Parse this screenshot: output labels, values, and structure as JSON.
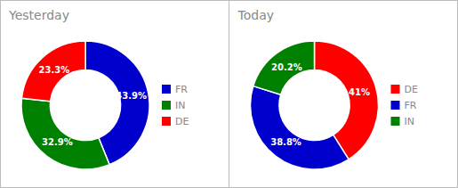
{
  "chart_data": [
    {
      "type": "donut",
      "title": "Yesterday",
      "categories": [
        "FR",
        "IN",
        "DE"
      ],
      "values": [
        43.9,
        32.9,
        23.3
      ],
      "value_labels": [
        "43.9%",
        "32.9%",
        "23.3%"
      ],
      "colors": [
        "#0000CC",
        "#008000",
        "#FF0000"
      ],
      "data_labels": true,
      "legend": "right"
    },
    {
      "type": "donut",
      "title": "Today",
      "categories": [
        "DE",
        "FR",
        "IN"
      ],
      "values": [
        41.0,
        38.8,
        20.2
      ],
      "value_labels": [
        "41%",
        "38.8%",
        "20.2%"
      ],
      "colors": [
        "#FF0000",
        "#0000CC",
        "#008000"
      ],
      "data_labels": true,
      "legend": "right"
    }
  ]
}
